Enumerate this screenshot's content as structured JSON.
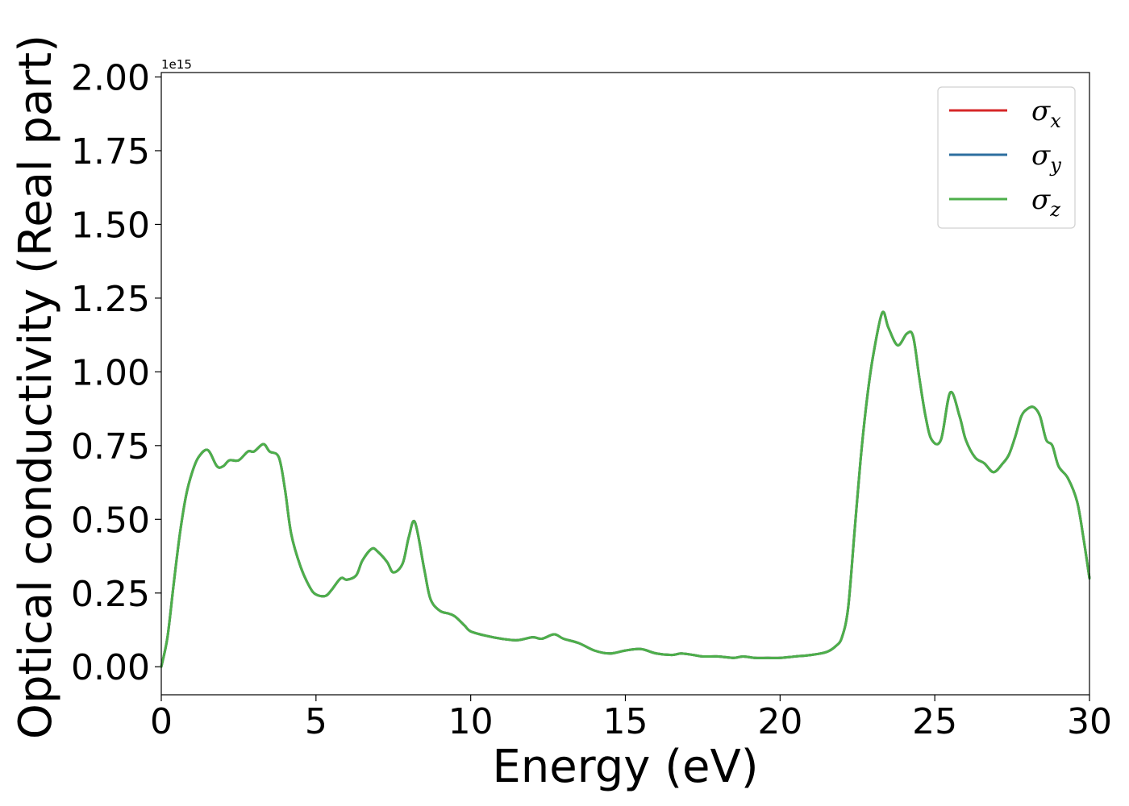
{
  "chart_data": {
    "type": "line",
    "title": "",
    "xlabel": "Energy (eV)",
    "ylabel": "Optical conductivity (Real part)",
    "y_offset_label": "1e15",
    "xlim": [
      0,
      30
    ],
    "ylim": [
      -0.095,
      2.015
    ],
    "grid": false,
    "legend_position": "top-right",
    "x_ticks": [
      0,
      5,
      10,
      15,
      20,
      25,
      30
    ],
    "x_tick_labels": [
      "0",
      "5",
      "10",
      "15",
      "20",
      "25",
      "30"
    ],
    "y_ticks": [
      0,
      0.25,
      0.5,
      0.75,
      1.0,
      1.25,
      1.5,
      1.75,
      2.0
    ],
    "y_tick_labels": [
      "0.00",
      "0.25",
      "0.50",
      "0.75",
      "1.00",
      "1.25",
      "1.50",
      "1.75",
      "2.00"
    ],
    "x": [
      0,
      0.2,
      0.4,
      0.6,
      0.8,
      1.0,
      1.2,
      1.5,
      1.8,
      2.0,
      2.2,
      2.5,
      2.8,
      3.0,
      3.3,
      3.5,
      3.8,
      4.0,
      4.2,
      4.5,
      4.8,
      5.0,
      5.3,
      5.5,
      5.8,
      6.0,
      6.3,
      6.5,
      6.8,
      7.0,
      7.3,
      7.5,
      7.8,
      8.0,
      8.2,
      8.5,
      8.7,
      9.0,
      9.3,
      9.5,
      9.8,
      10.0,
      10.5,
      11.0,
      11.5,
      12.0,
      12.3,
      12.7,
      13.0,
      13.5,
      14.0,
      14.5,
      15.0,
      15.5,
      16.0,
      16.5,
      16.8,
      17.2,
      17.5,
      18.0,
      18.5,
      18.8,
      19.2,
      19.6,
      20.0,
      20.5,
      21.0,
      21.5,
      21.8,
      22.0,
      22.2,
      22.4,
      22.6,
      22.8,
      23.0,
      23.3,
      23.5,
      23.8,
      24.1,
      24.3,
      24.5,
      24.7,
      24.9,
      25.2,
      25.5,
      25.8,
      26.0,
      26.3,
      26.6,
      26.9,
      27.2,
      27.4,
      27.6,
      27.8,
      28.0,
      28.2,
      28.4,
      28.6,
      28.8,
      29.0,
      29.3,
      29.6,
      29.8,
      30.0
    ],
    "series": [
      {
        "name": "σx",
        "color": "#d62728",
        "values": [
          0.0,
          0.1,
          0.28,
          0.45,
          0.58,
          0.66,
          0.71,
          0.735,
          0.68,
          0.68,
          0.7,
          0.7,
          0.73,
          0.73,
          0.755,
          0.73,
          0.71,
          0.6,
          0.45,
          0.34,
          0.27,
          0.245,
          0.24,
          0.26,
          0.3,
          0.295,
          0.31,
          0.36,
          0.4,
          0.39,
          0.355,
          0.32,
          0.35,
          0.44,
          0.49,
          0.33,
          0.23,
          0.19,
          0.18,
          0.17,
          0.14,
          0.12,
          0.105,
          0.095,
          0.09,
          0.1,
          0.095,
          0.11,
          0.095,
          0.08,
          0.055,
          0.045,
          0.055,
          0.06,
          0.045,
          0.04,
          0.045,
          0.04,
          0.035,
          0.035,
          0.03,
          0.035,
          0.03,
          0.03,
          0.03,
          0.035,
          0.04,
          0.05,
          0.07,
          0.1,
          0.2,
          0.45,
          0.7,
          0.9,
          1.05,
          1.2,
          1.15,
          1.09,
          1.13,
          1.12,
          0.98,
          0.85,
          0.77,
          0.77,
          0.93,
          0.85,
          0.77,
          0.71,
          0.69,
          0.66,
          0.69,
          0.72,
          0.78,
          0.85,
          0.875,
          0.88,
          0.85,
          0.77,
          0.75,
          0.68,
          0.64,
          0.56,
          0.44,
          0.3
        ]
      },
      {
        "name": "σy",
        "color": "#2c6e9f",
        "values": [
          0.0,
          0.1,
          0.28,
          0.45,
          0.58,
          0.66,
          0.71,
          0.735,
          0.68,
          0.68,
          0.7,
          0.7,
          0.73,
          0.73,
          0.755,
          0.73,
          0.71,
          0.6,
          0.45,
          0.34,
          0.27,
          0.245,
          0.24,
          0.26,
          0.3,
          0.295,
          0.31,
          0.36,
          0.4,
          0.39,
          0.355,
          0.32,
          0.35,
          0.44,
          0.49,
          0.33,
          0.23,
          0.19,
          0.18,
          0.17,
          0.14,
          0.12,
          0.105,
          0.095,
          0.09,
          0.1,
          0.095,
          0.11,
          0.095,
          0.08,
          0.055,
          0.045,
          0.055,
          0.06,
          0.045,
          0.04,
          0.045,
          0.04,
          0.035,
          0.035,
          0.03,
          0.035,
          0.03,
          0.03,
          0.03,
          0.035,
          0.04,
          0.05,
          0.07,
          0.1,
          0.2,
          0.45,
          0.7,
          0.9,
          1.05,
          1.2,
          1.15,
          1.09,
          1.13,
          1.12,
          0.98,
          0.85,
          0.77,
          0.77,
          0.93,
          0.85,
          0.77,
          0.71,
          0.69,
          0.66,
          0.69,
          0.72,
          0.78,
          0.85,
          0.875,
          0.88,
          0.85,
          0.77,
          0.75,
          0.68,
          0.64,
          0.56,
          0.44,
          0.3
        ]
      },
      {
        "name": "σz",
        "color": "#4daf4a",
        "values": [
          0.0,
          0.1,
          0.28,
          0.45,
          0.58,
          0.66,
          0.71,
          0.735,
          0.68,
          0.68,
          0.7,
          0.7,
          0.73,
          0.73,
          0.755,
          0.73,
          0.71,
          0.6,
          0.45,
          0.34,
          0.27,
          0.245,
          0.24,
          0.26,
          0.3,
          0.295,
          0.31,
          0.36,
          0.4,
          0.39,
          0.355,
          0.32,
          0.35,
          0.44,
          0.49,
          0.33,
          0.23,
          0.19,
          0.18,
          0.17,
          0.14,
          0.12,
          0.105,
          0.095,
          0.09,
          0.1,
          0.095,
          0.11,
          0.095,
          0.08,
          0.055,
          0.045,
          0.055,
          0.06,
          0.045,
          0.04,
          0.045,
          0.04,
          0.035,
          0.035,
          0.03,
          0.035,
          0.03,
          0.03,
          0.03,
          0.035,
          0.04,
          0.05,
          0.07,
          0.1,
          0.2,
          0.45,
          0.7,
          0.9,
          1.05,
          1.2,
          1.15,
          1.09,
          1.13,
          1.12,
          0.98,
          0.85,
          0.77,
          0.77,
          0.93,
          0.85,
          0.77,
          0.71,
          0.69,
          0.66,
          0.69,
          0.72,
          0.78,
          0.85,
          0.875,
          0.88,
          0.85,
          0.77,
          0.75,
          0.68,
          0.64,
          0.56,
          0.44,
          0.3
        ]
      }
    ],
    "legend": [
      {
        "symbol": "σ",
        "subscript": "x",
        "color": "#d62728"
      },
      {
        "symbol": "σ",
        "subscript": "y",
        "color": "#2c6e9f"
      },
      {
        "symbol": "σ",
        "subscript": "z",
        "color": "#4daf4a"
      }
    ]
  }
}
